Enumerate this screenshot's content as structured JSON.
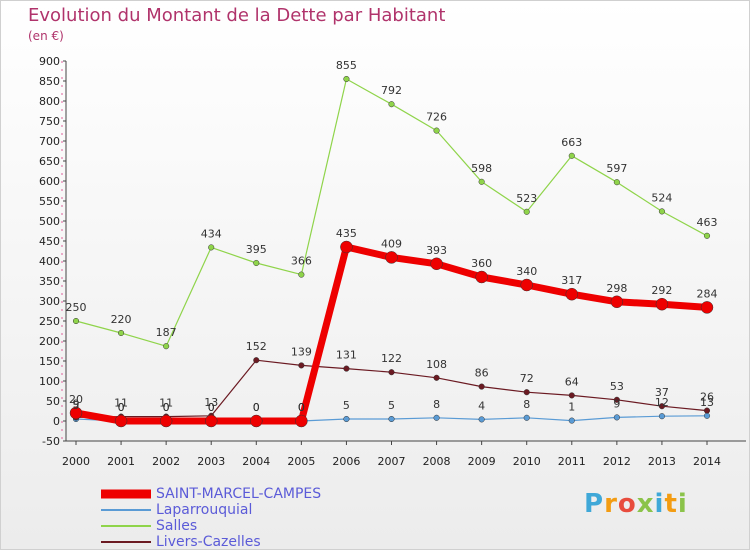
{
  "chart_data": {
    "type": "line",
    "title": "Evolution du Montant de la Dette par Habitant",
    "subtitle": "(en €)",
    "xlabel": "",
    "ylabel": "",
    "x": [
      "2000",
      "2001",
      "2002",
      "2003",
      "2004",
      "2005",
      "2006",
      "2007",
      "2008",
      "2009",
      "2010",
      "2011",
      "2012",
      "2013",
      "2014"
    ],
    "ylim": [
      -50,
      900
    ],
    "yticks": [
      -50,
      0,
      50,
      100,
      150,
      200,
      250,
      300,
      350,
      400,
      450,
      500,
      550,
      600,
      650,
      700,
      750,
      800,
      850,
      900
    ],
    "grid": false,
    "legend_position": "bottom-left",
    "series": [
      {
        "name": "Laparrouquial",
        "color": "#5a9bd5",
        "values": [
          5,
          0,
          0,
          0,
          0,
          0,
          5,
          5,
          8,
          4,
          8,
          1,
          9,
          12,
          13
        ]
      },
      {
        "name": "Salles",
        "color": "#8fd44a",
        "values": [
          250,
          220,
          187,
          434,
          395,
          366,
          855,
          792,
          726,
          598,
          523,
          663,
          597,
          524,
          463
        ]
      },
      {
        "name": "Livers-Cazelles",
        "color": "#6b1a22",
        "values": [
          9,
          11,
          11,
          13,
          152,
          139,
          131,
          122,
          108,
          86,
          72,
          64,
          53,
          37,
          26
        ]
      },
      {
        "name": "SAINT-MARCEL-CAMPES",
        "color": "#ee0000",
        "values": [
          20,
          0,
          0,
          0,
          0,
          0,
          435,
          409,
          393,
          360,
          340,
          317,
          298,
          292,
          284
        ]
      }
    ],
    "data_labels": {
      "Laparrouquial": [
        "5",
        "0",
        "0",
        "0",
        "0",
        "0",
        "5",
        "5",
        "8",
        "4",
        "8",
        "1",
        "9",
        "12",
        "13"
      ],
      "Salles": [
        "250",
        "220",
        "187",
        "434",
        "395",
        "366",
        "855",
        "792",
        "726",
        "598",
        "523",
        "663",
        "597",
        "524",
        "463"
      ],
      "Livers-Cazelles": [
        "9",
        "11",
        "11",
        "13",
        "152",
        "139",
        "131",
        "122",
        "108",
        "86",
        "72",
        "64",
        "53",
        "37",
        "26"
      ],
      "SAINT-MARCEL-CAMPES": [
        "20",
        "0",
        "0",
        "0",
        "0",
        "0",
        "435",
        "409",
        "393",
        "360",
        "340",
        "317",
        "298",
        "292",
        "284"
      ]
    },
    "legend": [
      "SAINT-MARCEL-CAMPES",
      "Laparrouquial",
      "Salles",
      "Livers-Cazelles"
    ]
  },
  "logo": {
    "text": "Proxiti",
    "letters": [
      "P",
      "r",
      "o",
      "x",
      "i",
      "t",
      "i"
    ],
    "colors": [
      "#3fa8d8",
      "#f39c12",
      "#e84c3d",
      "#8bc34a",
      "#3fa8d8",
      "#f39c12",
      "#8bc34a"
    ]
  }
}
